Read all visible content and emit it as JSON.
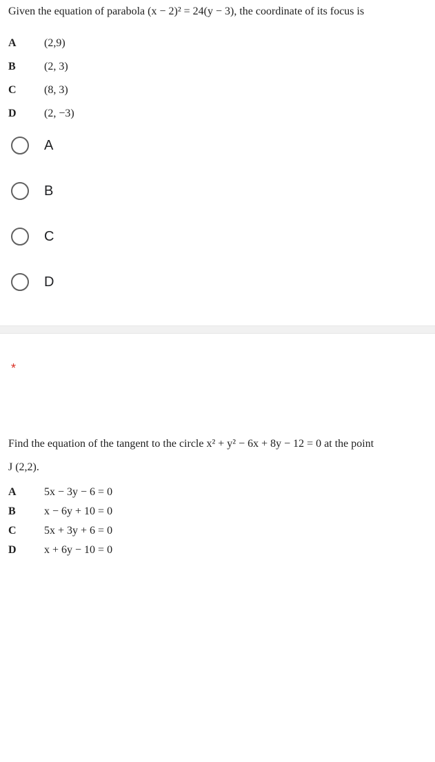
{
  "q1": {
    "text_before": "Given the equation of parabola ",
    "equation": "(x − 2)² = 24(y − 3)",
    "text_after": ", the coordinate of its focus is",
    "choices": [
      {
        "label": "A",
        "value": "(2,9)"
      },
      {
        "label": "B",
        "value": "(2, 3)"
      },
      {
        "label": "C",
        "value": "(8, 3)"
      },
      {
        "label": "D",
        "value": "(2, −3)"
      }
    ]
  },
  "radios": [
    {
      "label": "A"
    },
    {
      "label": "B"
    },
    {
      "label": "C"
    },
    {
      "label": "D"
    }
  ],
  "required_marker": "*",
  "q2": {
    "text_before": "Find the equation of the tangent to the circle ",
    "equation": "x² + y² − 6x + 8y − 12 = 0",
    "text_after": " at the point",
    "point": "J (2,2).",
    "choices": [
      {
        "label": "A",
        "value": "5x − 3y − 6 = 0"
      },
      {
        "label": "B",
        "value": "x − 6y + 10 = 0"
      },
      {
        "label": "C",
        "value": "5x + 3y + 6 = 0"
      },
      {
        "label": "D",
        "value": "x + 6y − 10 = 0"
      }
    ]
  },
  "style": {
    "body_bg": "#ffffff",
    "text_color": "#212121",
    "radio_border": "#606060",
    "separator_bg": "#f1f1f1",
    "required_color": "#d93025"
  }
}
